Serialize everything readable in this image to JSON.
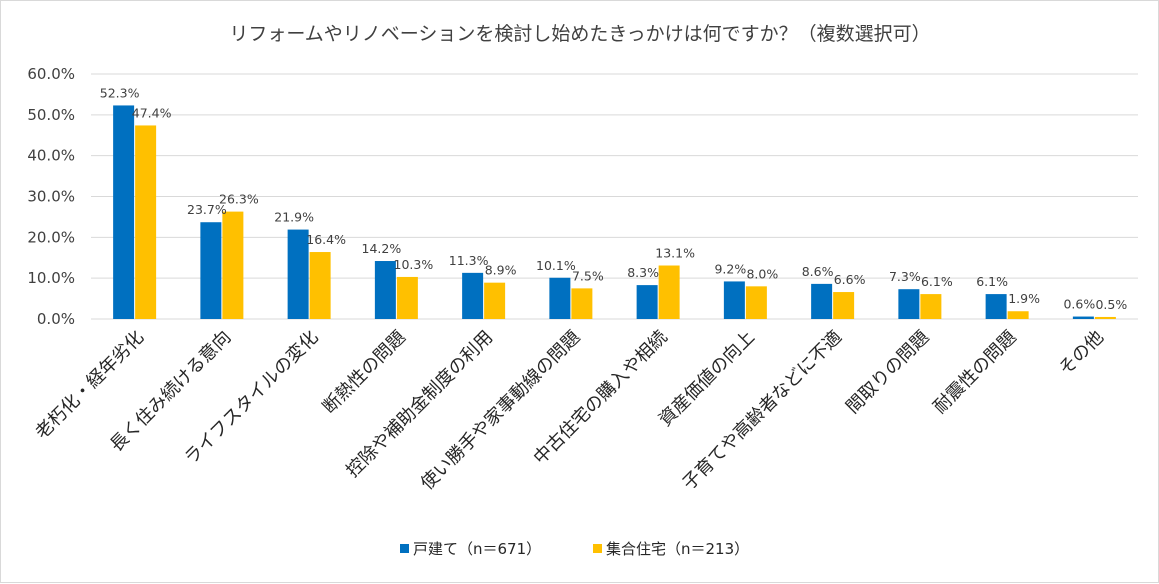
{
  "chart_data": {
    "type": "bar",
    "title": "リフォームやリノベーションを検討し始めたきっかけは何ですか？（複数選択可）",
    "xlabel": "",
    "ylabel": "",
    "ylim": [
      0,
      60
    ],
    "yticks": [
      "0.0%",
      "10.0%",
      "20.0%",
      "30.0%",
      "40.0%",
      "50.0%",
      "60.0%"
    ],
    "grid": true,
    "legend_position": "bottom",
    "categories": [
      "老朽化・経年劣化",
      "長く住み続ける意向",
      "ライフスタイルの変化",
      "断熱性の問題",
      "控除や補助金制度の利用",
      "使い勝手や家事動線の問題",
      "中古住宅の購入や相続",
      "資産価値の向上",
      "子育てや高齢者などに不適",
      "間取りの問題",
      "耐震性の問題",
      "その他"
    ],
    "series": [
      {
        "name": "戸建て（n＝671）",
        "color": "#0070c0",
        "values": [
          52.3,
          23.7,
          21.9,
          14.2,
          11.3,
          10.1,
          8.3,
          9.2,
          8.6,
          7.3,
          6.1,
          0.6
        ],
        "labels": [
          "52.3%",
          "23.7%",
          "21.9%",
          "14.2%",
          "11.3%",
          "10.1%",
          "8.3%",
          "9.2%",
          "8.6%",
          "7.3%",
          "6.1%",
          "0.6%"
        ]
      },
      {
        "name": "集合住宅（n＝213）",
        "color": "#ffc000",
        "values": [
          47.4,
          26.3,
          16.4,
          10.3,
          8.9,
          7.5,
          13.1,
          8.0,
          6.6,
          6.1,
          1.9,
          0.5
        ],
        "labels": [
          "47.4%",
          "26.3%",
          "16.4%",
          "10.3%",
          "8.9%",
          "7.5%",
          "13.1%",
          "8.0%",
          "6.6%",
          "6.1%",
          "1.9%",
          "0.5%"
        ]
      }
    ]
  }
}
